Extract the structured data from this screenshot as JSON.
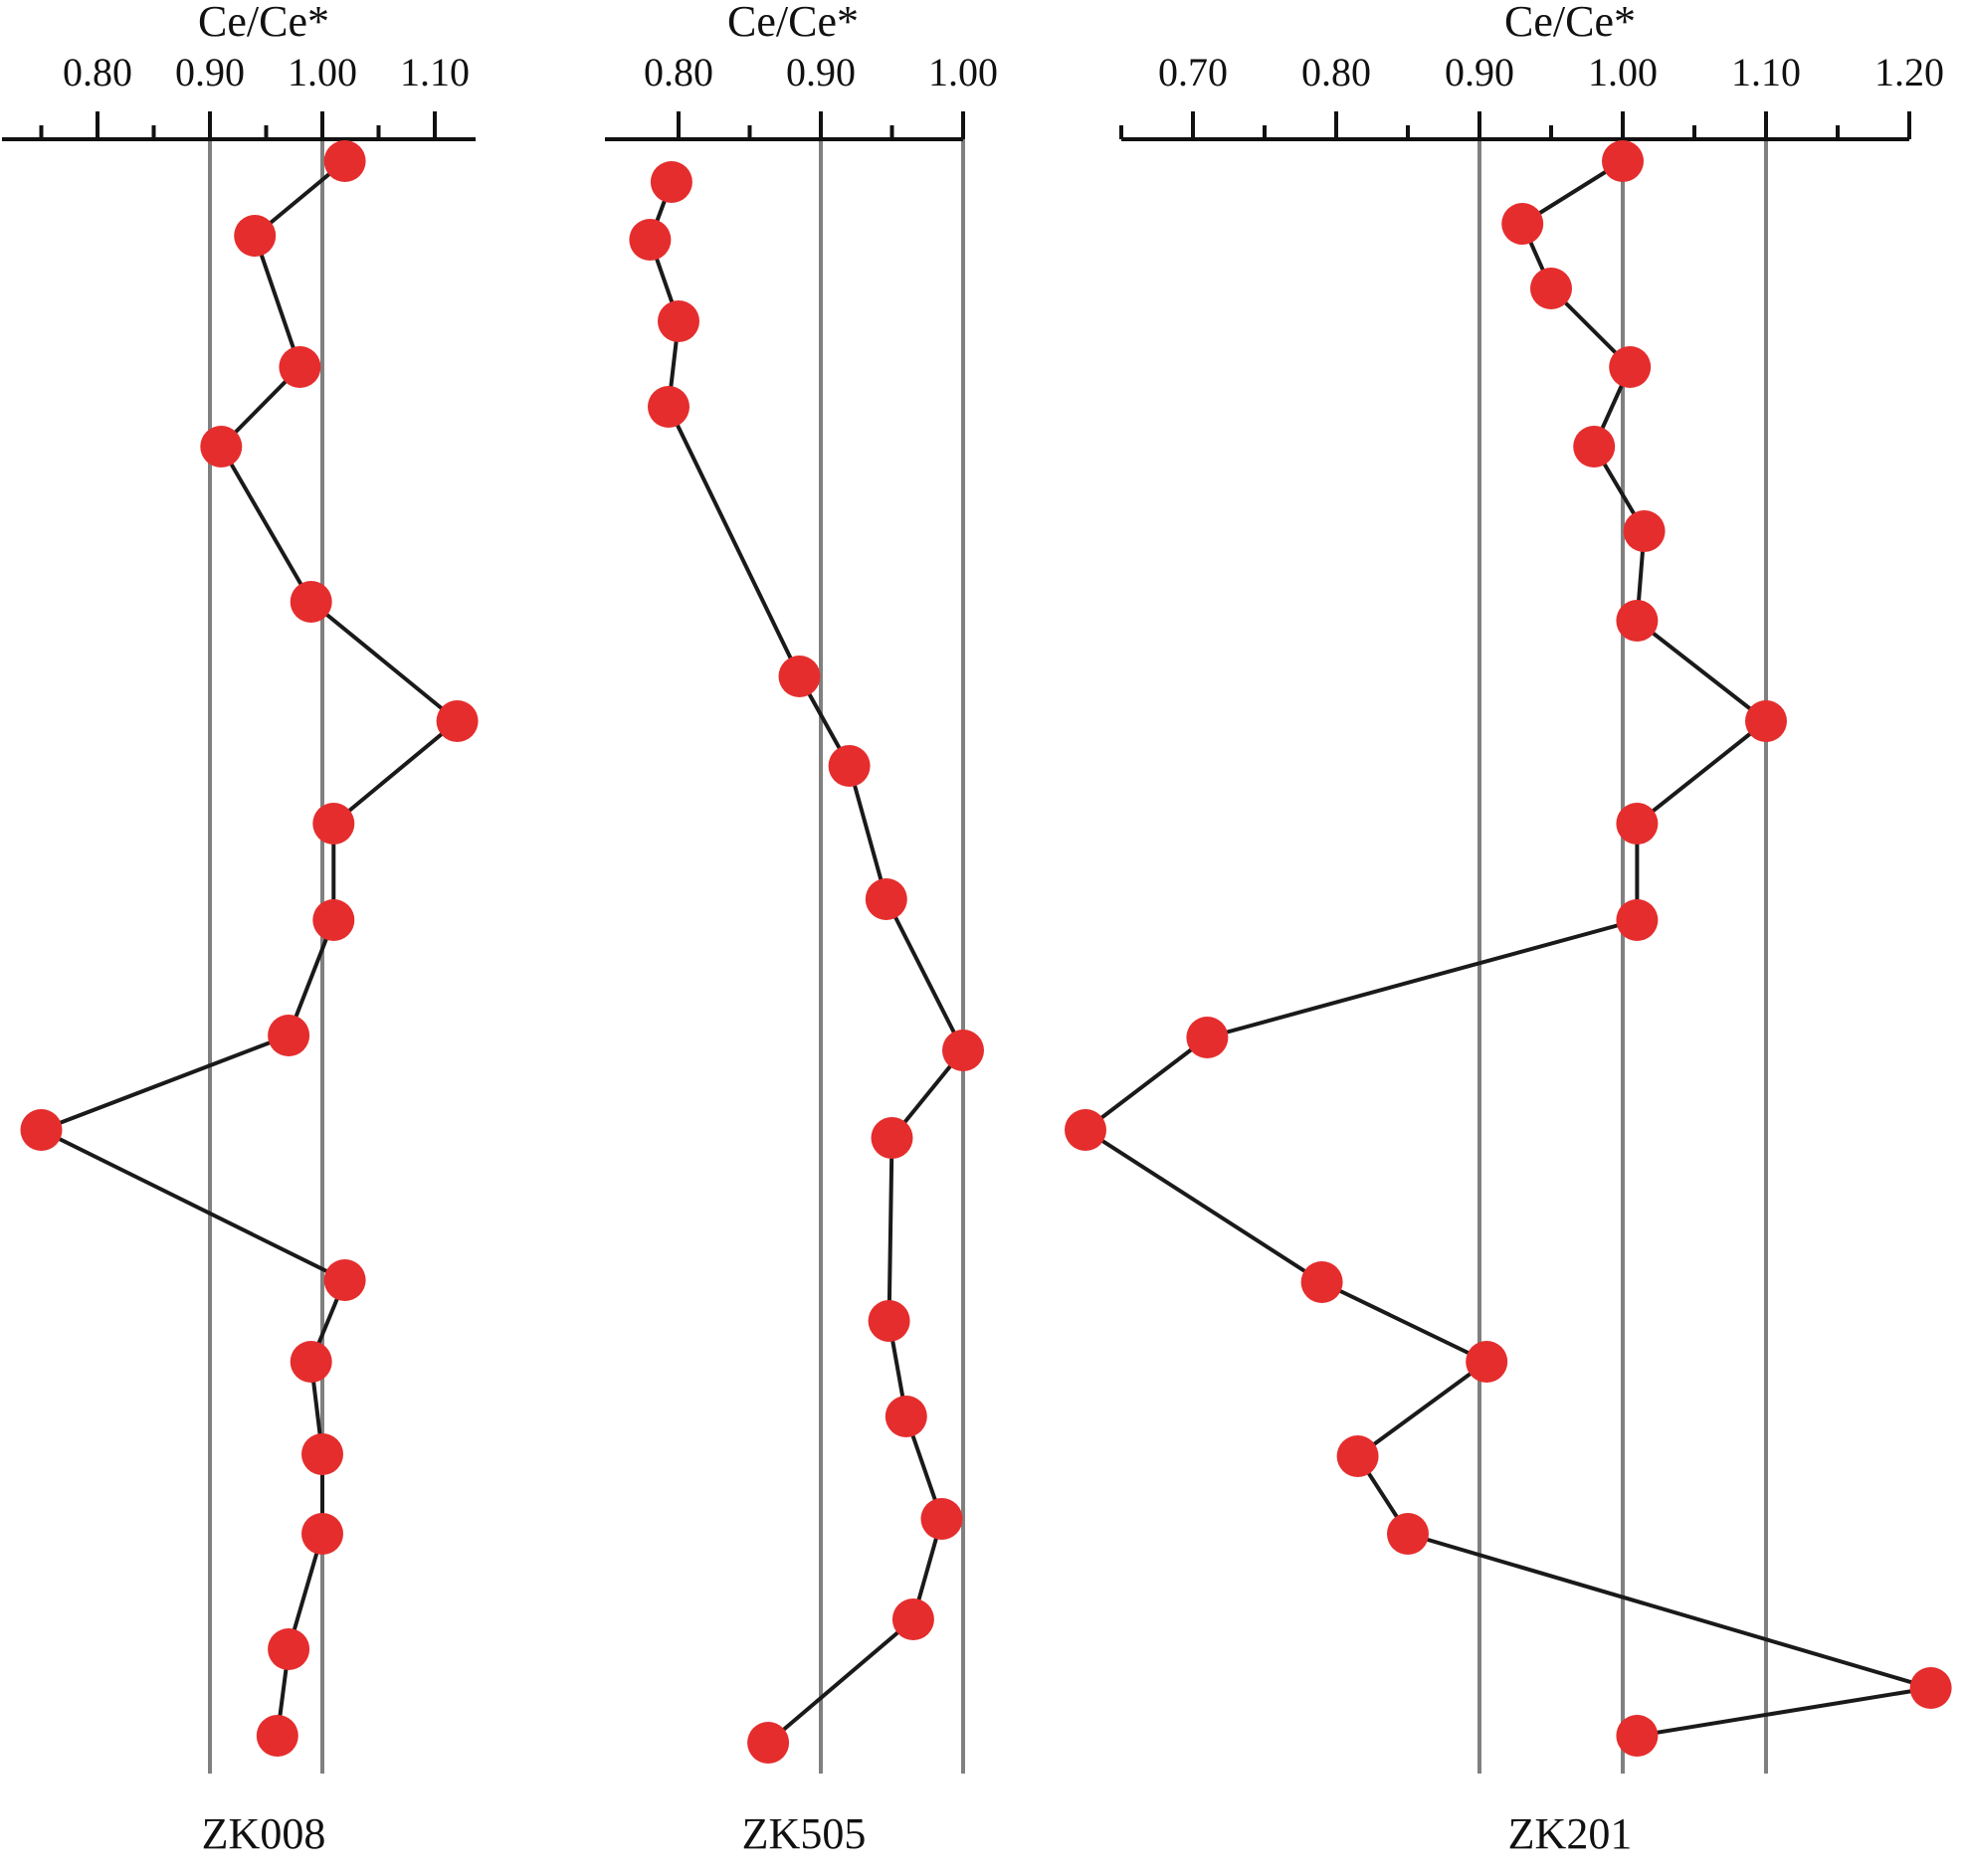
{
  "colors": {
    "marker": "#e52d2d",
    "line": "#1a1a1a",
    "reference_line": "#808080",
    "axis": "#111111",
    "background": "#ffffff"
  },
  "chart_data": [
    {
      "type": "line",
      "title": "Ce/Ce*",
      "well": "ZK008",
      "x_axis_position": "top",
      "xlim": [
        0.7,
        1.14
      ],
      "ticks": [
        0.8,
        0.9,
        1.0,
        1.1
      ],
      "tick_labels": [
        "0.80",
        "0.90",
        "1.00",
        "1.10"
      ],
      "minor_ticks": [
        0.75,
        0.85,
        0.95,
        1.05
      ],
      "reference_lines": [
        0.9,
        1.0
      ],
      "markers": "filled-circles",
      "series": [
        {
          "values": [
            1.02,
            0.94,
            0.98,
            0.91,
            0.99,
            1.12,
            1.01,
            1.01,
            0.97,
            0.75,
            1.02,
            0.99,
            1.0,
            1.0,
            0.97,
            0.96
          ]
        }
      ]
    },
    {
      "type": "line",
      "title": "Ce/Ce*",
      "well": "ZK505",
      "x_axis_position": "top",
      "xlim": [
        0.75,
        1.0
      ],
      "ticks": [
        0.8,
        0.9,
        1.0
      ],
      "tick_labels": [
        "0.80",
        "0.90",
        "1.00"
      ],
      "minor_ticks": [
        0.85,
        0.95
      ],
      "reference_lines": [
        0.9,
        1.0
      ],
      "markers": "filled-circles",
      "series": [
        {
          "values": [
            0.795,
            0.78,
            0.8,
            0.793,
            0.885,
            0.92,
            0.946,
            1.0,
            0.95,
            0.948,
            0.96,
            0.985,
            0.965,
            0.863
          ]
        }
      ]
    },
    {
      "type": "line",
      "title": "Ce/Ce*",
      "well": "ZK201",
      "x_axis_position": "top",
      "xlim": [
        0.635,
        1.205
      ],
      "ticks": [
        0.7,
        0.8,
        0.9,
        1.0,
        1.1,
        1.2
      ],
      "tick_labels": [
        "0.70",
        "0.80",
        "0.90",
        "1.00",
        "1.10",
        "1.20"
      ],
      "minor_ticks": [
        0.65,
        0.75,
        0.85,
        0.95,
        1.05,
        1.15
      ],
      "reference_lines": [
        0.9,
        1.0,
        1.1
      ],
      "markers": "filled-circles",
      "series": [
        {
          "values": [
            1.0,
            0.93,
            0.95,
            1.005,
            0.98,
            1.015,
            1.01,
            1.1,
            1.01,
            1.01,
            0.71,
            0.625,
            0.79,
            0.905,
            0.815,
            0.85,
            1.215,
            1.01
          ]
        }
      ]
    }
  ]
}
